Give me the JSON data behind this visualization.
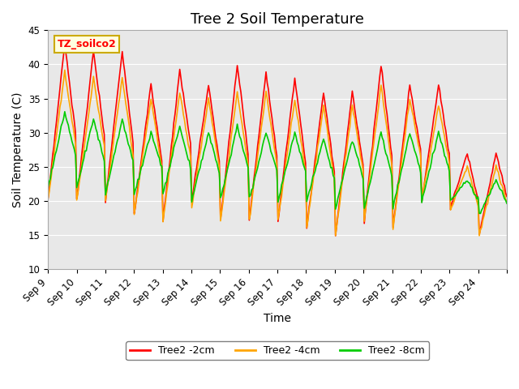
{
  "title": "Tree 2 Soil Temperature",
  "xlabel": "Time",
  "ylabel": "Soil Temperature (C)",
  "ylim": [
    10,
    45
  ],
  "annotation_text": "TZ_soilco2",
  "legend_labels": [
    "Tree2 -2cm",
    "Tree2 -4cm",
    "Tree2 -8cm"
  ],
  "line_colors": [
    "#FF0000",
    "#FFA500",
    "#00CC00"
  ],
  "background_color": "#E8E8E8",
  "fig_color": "#FFFFFF",
  "x_tick_labels": [
    "Sep 9",
    "Sep 10",
    "Sep 11",
    "Sep 12",
    "Sep 13",
    "Sep 14",
    "Sep 15",
    "Sep 16",
    "Sep 17",
    "Sep 18",
    "Sep 19",
    "Sep 20",
    "Sep 21",
    "Sep 22",
    "Sep 23",
    "Sep 24",
    ""
  ],
  "grid_color": "#FFFFFF",
  "title_fontsize": 13,
  "axis_fontsize": 10,
  "tick_fontsize": 8.5,
  "n_days": 16,
  "red_peaks": [
    43,
    42,
    42,
    37,
    39,
    37,
    40,
    39,
    38,
    36,
    36,
    40,
    37,
    37,
    27,
    27
  ],
  "red_troughs": [
    20,
    20,
    18,
    17,
    20,
    17,
    17,
    17,
    16,
    15,
    17,
    16,
    20,
    19,
    15,
    16
  ],
  "orange_peaks": [
    39,
    38,
    38,
    35,
    36,
    35,
    36,
    36,
    35,
    34,
    34,
    37,
    35,
    34,
    25,
    25
  ],
  "orange_troughs": [
    20,
    20,
    18,
    17,
    19,
    17,
    17,
    17,
    16,
    15,
    17,
    16,
    20,
    19,
    15,
    16
  ],
  "green_peaks": [
    33,
    32,
    32,
    30,
    31,
    30,
    31,
    30,
    30,
    29,
    29,
    30,
    30,
    30,
    23,
    23
  ],
  "green_troughs": [
    22,
    21,
    21,
    21,
    20,
    20,
    20,
    20,
    20,
    19,
    19,
    19,
    20,
    20,
    18,
    17
  ]
}
